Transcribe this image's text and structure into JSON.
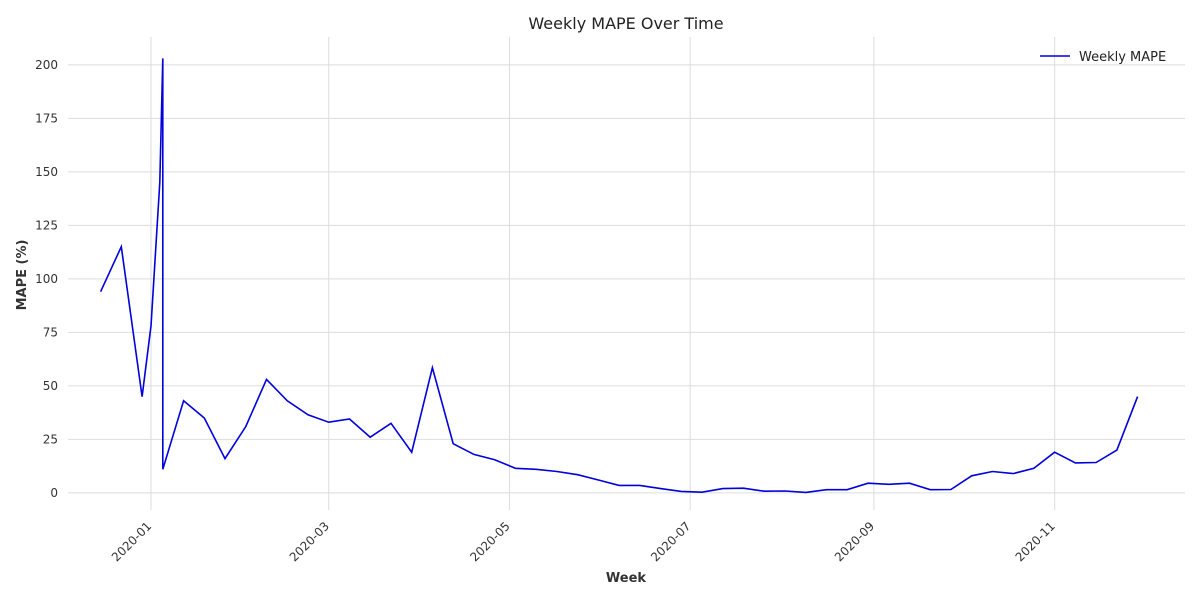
{
  "chart_data": {
    "type": "line",
    "title": "Weekly MAPE Over Time",
    "xlabel": "Week",
    "ylabel": "MAPE (%)",
    "xlim": [
      "2019-12-04",
      "2020-12-15"
    ],
    "ylim": [
      -8,
      213
    ],
    "yticks": [
      0,
      25,
      50,
      75,
      100,
      125,
      150,
      175,
      200
    ],
    "xticks": [
      "2020-01",
      "2020-03",
      "2020-05",
      "2020-07",
      "2020-09",
      "2020-11"
    ],
    "grid": true,
    "legend": {
      "position": "top-right"
    },
    "series": [
      {
        "name": "Weekly MAPE",
        "color": "#0000dd",
        "x": [
          "2019-12-15",
          "2019-12-22",
          "2019-12-29",
          "2020-01-01",
          "2020-01-04",
          "2020-01-05",
          "2020-01-05",
          "2020-01-12",
          "2020-01-19",
          "2020-01-26",
          "2020-02-02",
          "2020-02-09",
          "2020-02-16",
          "2020-02-23",
          "2020-03-01",
          "2020-03-08",
          "2020-03-15",
          "2020-03-22",
          "2020-03-29",
          "2020-04-05",
          "2020-04-12",
          "2020-04-19",
          "2020-04-26",
          "2020-05-03",
          "2020-05-10",
          "2020-05-17",
          "2020-05-24",
          "2020-05-31",
          "2020-06-07",
          "2020-06-14",
          "2020-06-21",
          "2020-06-28",
          "2020-07-05",
          "2020-07-12",
          "2020-07-19",
          "2020-07-26",
          "2020-08-02",
          "2020-08-09",
          "2020-08-16",
          "2020-08-23",
          "2020-08-30",
          "2020-09-06",
          "2020-09-13",
          "2020-09-20",
          "2020-09-27",
          "2020-10-04",
          "2020-10-11",
          "2020-10-18",
          "2020-10-25",
          "2020-11-01",
          "2020-11-08",
          "2020-11-15",
          "2020-11-22",
          "2020-11-29"
        ],
        "values": [
          94,
          115,
          45,
          78,
          145,
          203,
          11,
          43,
          35,
          16,
          31,
          53,
          43,
          36.5,
          33,
          34.5,
          26,
          32.5,
          19,
          58.5,
          23,
          18,
          15.5,
          11.5,
          11,
          10,
          8.5,
          6,
          3.5,
          3.5,
          2,
          0.7,
          0.3,
          2,
          2.2,
          0.8,
          0.9,
          0.2,
          1.5,
          1.5,
          4.5,
          4,
          4.5,
          1.5,
          1.6,
          8,
          10,
          9,
          11.5,
          19,
          14,
          14.2,
          20,
          45
        ]
      }
    ]
  }
}
